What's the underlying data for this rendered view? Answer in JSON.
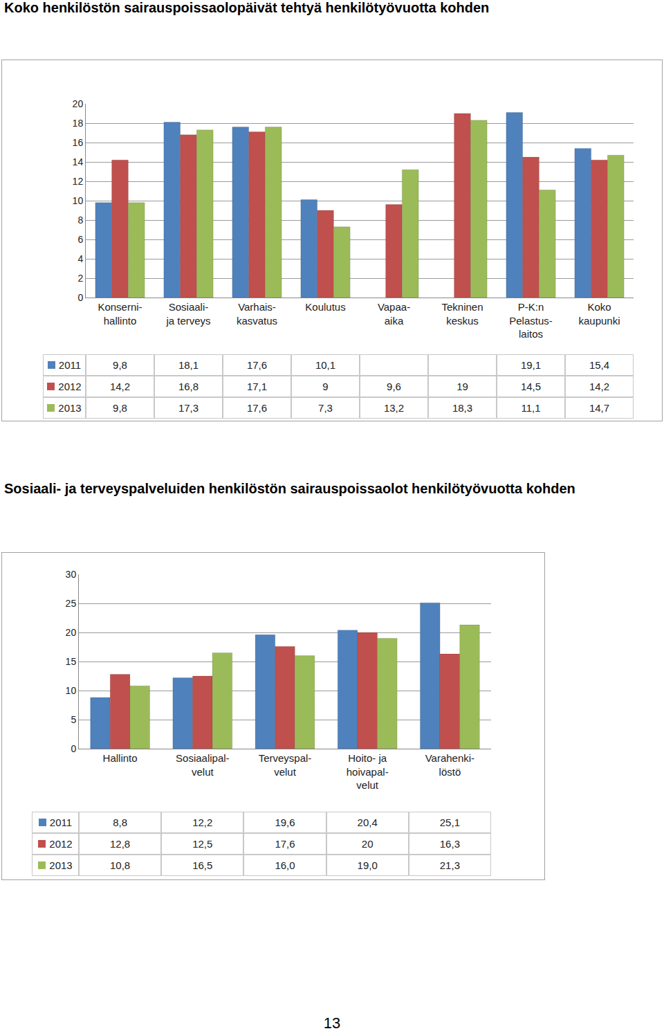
{
  "chart_data": [
    {
      "type": "bar",
      "title": "Koko henkilöstön sairauspoissaolopäivät tehtyä henkilötyövuotta kohden",
      "categories": [
        "Konserni-\nhallinto",
        "Sosiaali-\nja terveys",
        "Varhais-\nkasvatus",
        "Koulutus",
        "Vapaa-\naika",
        "Tekninen\nkeskus",
        "P-K:n\nPelastus-\nlaitos",
        "Koko\nkaupunki"
      ],
      "series": [
        {
          "name": "2011",
          "color": "#4f81bd",
          "values": [
            9.8,
            18.1,
            17.6,
            10.1,
            null,
            null,
            19.1,
            15.4
          ],
          "value_labels": [
            "9,8",
            "18,1",
            "17,6",
            "10,1",
            null,
            null,
            "19,1",
            "15,4"
          ]
        },
        {
          "name": "2012",
          "color": "#c0504d",
          "values": [
            14.2,
            16.8,
            17.1,
            9,
            9.6,
            19,
            14.5,
            14.2
          ],
          "value_labels": [
            "14,2",
            "16,8",
            "17,1",
            "9",
            "9,6",
            "19",
            "14,5",
            "14,2"
          ]
        },
        {
          "name": "2013",
          "color": "#9bbb59",
          "values": [
            9.8,
            17.3,
            17.6,
            7.3,
            13.2,
            18.3,
            11.1,
            14.7
          ],
          "value_labels": [
            "9,8",
            "17,3",
            "17,6",
            "7,3",
            "13,2",
            "18,3",
            "11,1",
            "14,7"
          ]
        }
      ],
      "ylim": [
        0,
        20
      ],
      "yticks": [
        0,
        2,
        4,
        6,
        8,
        10,
        12,
        14,
        16,
        18,
        20
      ],
      "grid": true
    },
    {
      "type": "bar",
      "title": "Sosiaali- ja terveyspalveluiden henkilöstön sairauspoissaolot henkilötyövuotta kohden",
      "categories": [
        "Hallinto",
        "Sosiaalipal-\nvelut",
        "Terveyspal-\nvelut",
        "Hoito- ja\nhoivapal-\nvelut",
        "Varahenki-\nlöstö"
      ],
      "series": [
        {
          "name": "2011",
          "color": "#4f81bd",
          "values": [
            8.8,
            12.2,
            19.6,
            20.4,
            25.1
          ],
          "value_labels": [
            "8,8",
            "12,2",
            "19,6",
            "20,4",
            "25,1"
          ]
        },
        {
          "name": "2012",
          "color": "#c0504d",
          "values": [
            12.8,
            12.5,
            17.6,
            20,
            16.3
          ],
          "value_labels": [
            "12,8",
            "12,5",
            "17,6",
            "20",
            "16,3"
          ]
        },
        {
          "name": "2013",
          "color": "#9bbb59",
          "values": [
            10.8,
            16.5,
            16.0,
            19.0,
            21.3
          ],
          "value_labels": [
            "10,8",
            "16,5",
            "16,0",
            "19,0",
            "21,3"
          ]
        }
      ],
      "ylim": [
        0,
        30
      ],
      "yticks": [
        0,
        5,
        10,
        15,
        20,
        25,
        30
      ],
      "grid": true
    }
  ],
  "page_number": "13"
}
